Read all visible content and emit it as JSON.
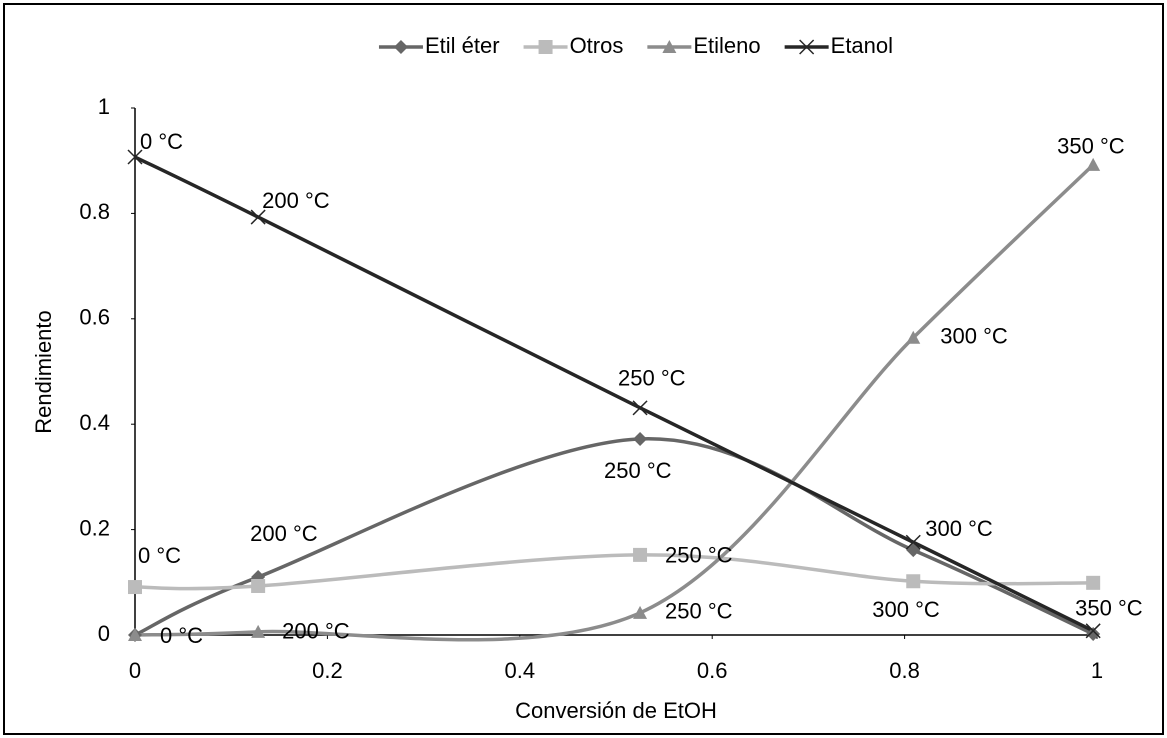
{
  "chart_data": {
    "type": "line",
    "x_label": "Conversión de EtOH",
    "y_label": "Rendimiento",
    "x": [
      0,
      0.128,
      0.525,
      0.809,
      0.996
    ],
    "series": [
      {
        "name": "Etil éter",
        "color": "#666666",
        "marker": "diamond",
        "values": [
          0,
          0.11,
          0.372,
          0.161,
          0.002
        ],
        "point_labels": [
          null,
          "200 °C",
          "250 °C",
          null,
          null
        ]
      },
      {
        "name": "Otros",
        "color": "#bbbbbb",
        "marker": "square",
        "values": [
          0.091,
          0.093,
          0.152,
          0.102,
          0.099
        ],
        "point_labels": [
          "0 °C",
          null,
          "250 °C",
          "300 °C",
          null
        ]
      },
      {
        "name": "Etileno",
        "color": "#8c8c8c",
        "marker": "triangle",
        "values": [
          0,
          0.006,
          0.042,
          0.564,
          0.892
        ],
        "point_labels": [
          "0 °C",
          "200 °C",
          "250 °C",
          "300 °C",
          "350 °C"
        ]
      },
      {
        "name": "Etanol",
        "color": "#262626",
        "marker": "x",
        "values": [
          0.907,
          0.793,
          0.431,
          0.176,
          0.008
        ],
        "point_labels": [
          "0 °C",
          "200 °C",
          "250 °C",
          "300 °C",
          "350 °C"
        ]
      }
    ],
    "xlim": [
      0,
      1
    ],
    "xticks": [
      0,
      0.2,
      0.4,
      0.6,
      0.8,
      1
    ],
    "ylim": [
      0,
      1
    ],
    "yticks": [
      0,
      0.2,
      0.4,
      0.6,
      0.8,
      1
    ],
    "grid": false,
    "legend": "top",
    "smooth": true
  }
}
